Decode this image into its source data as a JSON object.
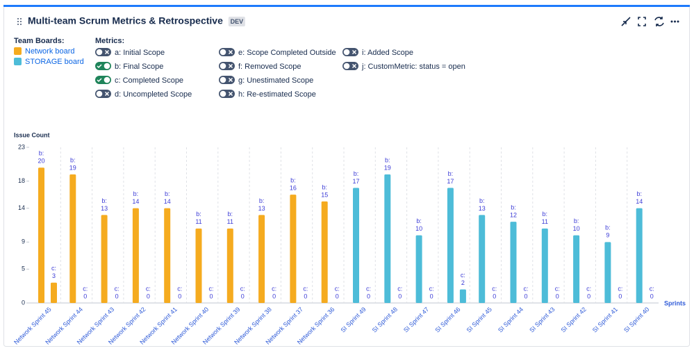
{
  "header": {
    "title": "Multi-team Scrum Metrics & Retrospective",
    "badge": "DEV"
  },
  "team_legend": {
    "title": "Team Boards:",
    "teams": [
      {
        "name": "Network board",
        "color": "#f5ab1f"
      },
      {
        "name": "STORAGE board",
        "color": "#4dbcd8"
      }
    ]
  },
  "metrics": {
    "title": "Metrics:",
    "items": [
      {
        "label": "a: Initial Scope",
        "on": false
      },
      {
        "label": "b: Final Scope",
        "on": true
      },
      {
        "label": "c: Completed Scope",
        "on": true
      },
      {
        "label": "d: Uncompleted Scope",
        "on": false
      },
      {
        "label": "e: Scope Completed Outside",
        "on": false
      },
      {
        "label": "f: Removed Scope",
        "on": false
      },
      {
        "label": "g: Unestimated Scope",
        "on": false
      },
      {
        "label": "h: Re-estimated Scope",
        "on": false
      },
      {
        "label": "i: Added Scope",
        "on": false
      },
      {
        "label": "j: CustomMetric: status = open",
        "on": false
      }
    ]
  },
  "chart_data": {
    "type": "bar",
    "y_label": "Issue Count",
    "x_label": "Sprints",
    "categories": [
      "Network Sprint 45",
      "Network Sprint 44",
      "Network Sprint 43",
      "Network Sprint 42",
      "Network Sprint 41",
      "Network Sprint 40",
      "Network Sprint 39",
      "Network Sprint 38",
      "Network Sprint 37",
      "Network Sprint 36",
      "SI Sprint 49",
      "SI Sprint 48",
      "SI Sprint 47",
      "SI Sprint 46",
      "SI Sprint 45",
      "SI Sprint 44",
      "SI Sprint 43",
      "SI Sprint 42",
      "SI Sprint 41",
      "SI Sprint 40"
    ],
    "bar_colors": [
      "#f5ab1f",
      "#f5ab1f",
      "#f5ab1f",
      "#f5ab1f",
      "#f5ab1f",
      "#f5ab1f",
      "#f5ab1f",
      "#f5ab1f",
      "#f5ab1f",
      "#f5ab1f",
      "#4dbcd8",
      "#4dbcd8",
      "#4dbcd8",
      "#4dbcd8",
      "#4dbcd8",
      "#4dbcd8",
      "#4dbcd8",
      "#4dbcd8",
      "#4dbcd8",
      "#4dbcd8"
    ],
    "series": [
      {
        "name": "b: Final Scope",
        "short_label": "b:",
        "values": [
          20,
          19,
          13,
          14,
          14,
          11,
          11,
          13,
          16,
          15,
          17,
          19,
          10,
          17,
          13,
          12,
          11,
          10,
          9,
          14
        ]
      },
      {
        "name": "c: Completed Scope",
        "short_label": "c:",
        "values": [
          3,
          0,
          0,
          0,
          0,
          0,
          0,
          0,
          0,
          0,
          0,
          0,
          0,
          2,
          0,
          0,
          0,
          0,
          0,
          0
        ]
      }
    ],
    "ylim": [
      0,
      23
    ],
    "yticks": [
      0,
      5,
      9,
      14,
      18,
      23
    ]
  }
}
